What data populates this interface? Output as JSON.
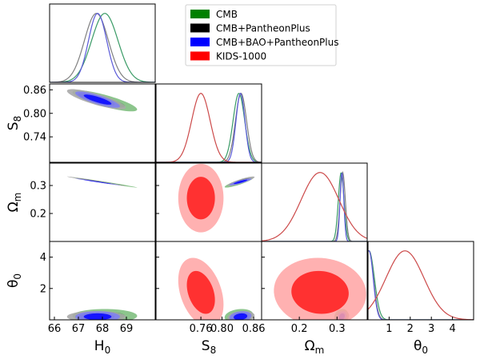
{
  "chart_data": {
    "type": "triangle-posterior",
    "title": "",
    "parameters": [
      {
        "key": "H0",
        "label_main": "H",
        "label_sub": "0",
        "range": [
          65.8,
          70.2
        ],
        "ticks": [
          66,
          67,
          68,
          69
        ],
        "tick_labels": [
          "66",
          "67",
          "68",
          "69"
        ]
      },
      {
        "key": "S8",
        "label_main": "S",
        "label_sub": "8",
        "range": [
          0.675,
          0.875
        ],
        "ticks": [
          0.74,
          0.8,
          0.86
        ],
        "tick_labels": [
          "0.74",
          "0.80",
          "0.86"
        ],
        "axis_extra": {
          "ticks": [
            0.76,
            0.8,
            0.86
          ],
          "tick_labels": [
            "0.76",
            "0.80",
            "0.86"
          ]
        }
      },
      {
        "key": "Om",
        "label_main": "Ω",
        "label_sub": "m",
        "range": [
          0.1,
          0.38
        ],
        "ticks": [
          0.2,
          0.3
        ],
        "tick_labels": [
          "0.2",
          "0.3"
        ],
        "axis_extra": {
          "ticks": [
            0.2,
            0.3
          ],
          "tick_labels": [
            "0.2",
            "0.3"
          ]
        }
      },
      {
        "key": "theta0",
        "label_main": "θ",
        "label_sub": "0",
        "range": [
          0,
          5
        ],
        "ticks": [
          2,
          4
        ],
        "tick_labels": [
          "2",
          "4"
        ],
        "axis_extra": {
          "ticks": [
            1,
            2,
            3,
            4
          ],
          "tick_labels": [
            "1",
            "2",
            "3",
            "4"
          ]
        }
      }
    ],
    "legend": [
      {
        "name": "CMB",
        "color": "#008000"
      },
      {
        "name": "CMB+PantheonPlus",
        "color": "#000000"
      },
      {
        "name": "CMB+BAO+PantheonPlus",
        "color": "#0000ff"
      },
      {
        "name": "KIDS-1000",
        "color": "#ff0000"
      }
    ],
    "series": [
      {
        "name": "CMB",
        "color": "#008000",
        "line": "#3a9b66",
        "mean": {
          "H0": 68.1,
          "S8": 0.832,
          "Om": 0.311,
          "theta0": 0.25
        },
        "sd": {
          "H0": 0.55,
          "S8": 0.011,
          "Om": 0.0075,
          "theta0": 0.18
        }
      },
      {
        "name": "CMB+PantheonPlus",
        "color": "#000000",
        "line": "#808080",
        "mean": {
          "H0": 67.75,
          "S8": 0.836,
          "Om": 0.315,
          "theta0": 0.2
        },
        "sd": {
          "H0": 0.5,
          "S8": 0.0105,
          "Om": 0.007,
          "theta0": 0.15
        }
      },
      {
        "name": "CMB+BAO+PantheonPlus",
        "color": "#0000ff",
        "line": "#5a5ad8",
        "mean": {
          "H0": 67.8,
          "S8": 0.835,
          "Om": 0.313,
          "theta0": 0.2
        },
        "sd": {
          "H0": 0.38,
          "S8": 0.0085,
          "Om": 0.005,
          "theta0": 0.14
        }
      },
      {
        "name": "KIDS-1000",
        "color": "#ff0000",
        "line": "#cc4a4a",
        "mean": {
          "S8": 0.76,
          "Om": 0.255,
          "theta0": 1.75
        },
        "sd": {
          "S8": 0.0175,
          "Om": 0.05,
          "theta0": 0.9
        }
      }
    ],
    "panels": "lower-triangle: diagonal 1D marginal densities, off-diagonal 68%/95% 2D contours",
    "grid": false
  }
}
